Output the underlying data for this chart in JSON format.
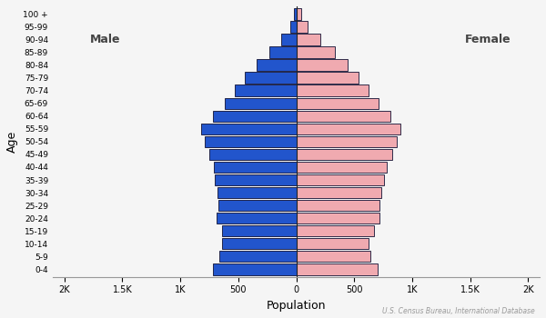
{
  "age_groups": [
    "0-4",
    "5-9",
    "10-14",
    "15-19",
    "20-24",
    "25-29",
    "30-34",
    "35-39",
    "40-44",
    "45-49",
    "50-54",
    "55-59",
    "60-64",
    "65-69",
    "70-74",
    "75-79",
    "80-84",
    "85-89",
    "90-94",
    "95-99",
    "100 +"
  ],
  "male": [
    720,
    660,
    640,
    640,
    690,
    670,
    680,
    700,
    710,
    750,
    790,
    820,
    720,
    620,
    530,
    440,
    340,
    230,
    130,
    55,
    20
  ],
  "female": [
    700,
    640,
    620,
    670,
    720,
    720,
    730,
    760,
    780,
    830,
    870,
    900,
    810,
    710,
    620,
    540,
    440,
    330,
    210,
    100,
    40
  ],
  "male_color": "#2255cc",
  "female_color": "#f0aab0",
  "male_edgecolor": "#111133",
  "female_edgecolor": "#111133",
  "background_color": "#f5f5f5",
  "xlabel": "Population",
  "ylabel": "Age",
  "xticks": [
    -2000,
    -1500,
    -1000,
    -500,
    0,
    500,
    1000,
    1500,
    2000
  ],
  "xtick_labels": [
    "2K",
    "1.5K",
    "1K",
    "500",
    "0",
    "500",
    "1K",
    "1.5K",
    "2K"
  ],
  "xlim": [
    -2100,
    2100
  ],
  "male_label": "Male",
  "female_label": "Female",
  "source_text": "U.S. Census Bureau, International Database",
  "bar_height": 0.88,
  "linewidth": 0.6
}
